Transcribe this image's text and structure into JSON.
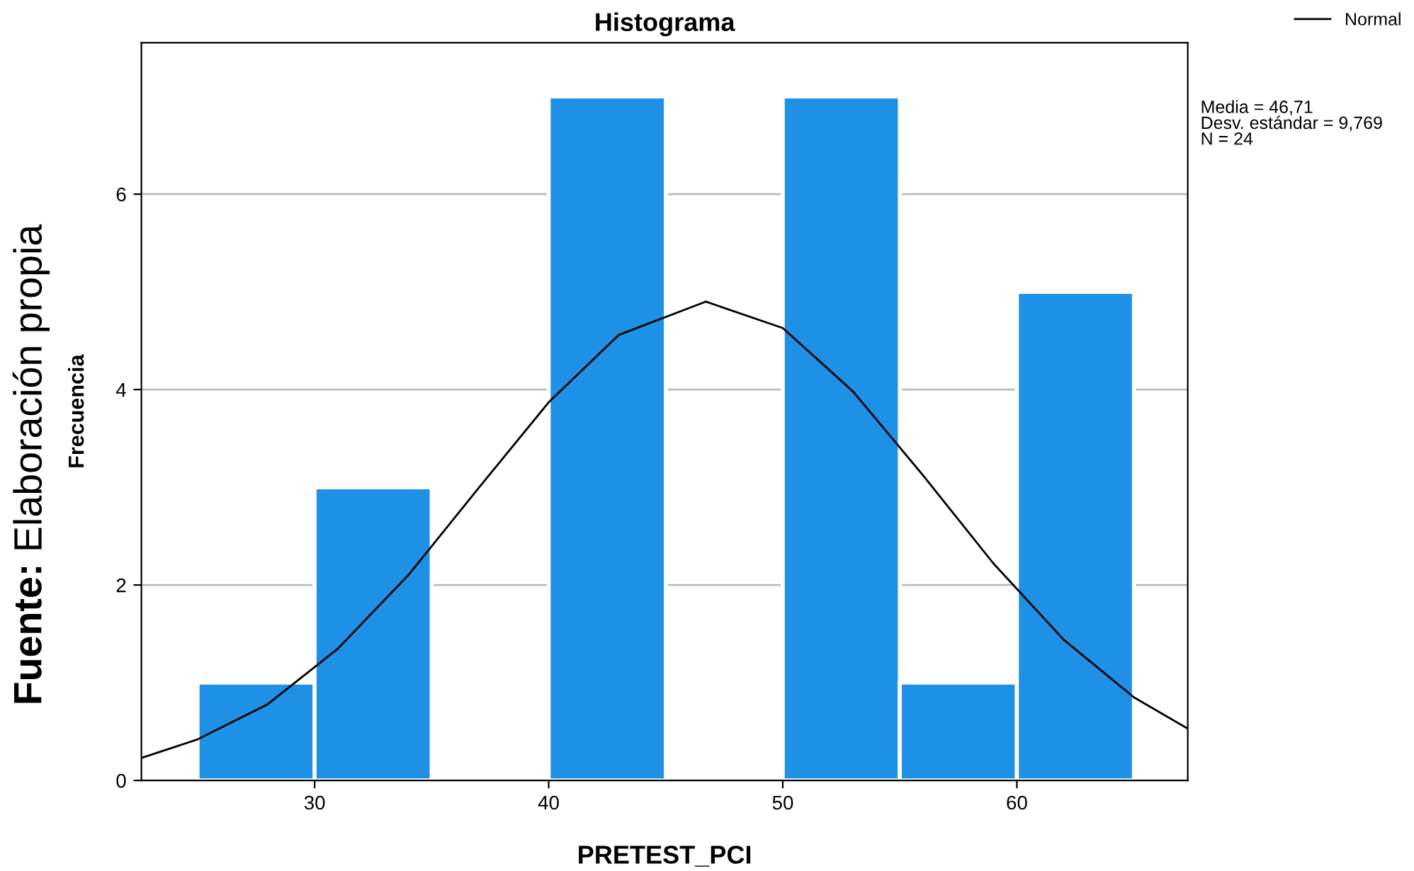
{
  "chart_data": {
    "type": "histogram",
    "title": "Histograma",
    "xlabel": "PRETEST_PCI",
    "ylabel": "Frecuencia",
    "bins": [
      25,
      30,
      35,
      40,
      45,
      50,
      55,
      60,
      65
    ],
    "values": [
      1,
      3,
      0,
      7,
      0,
      7,
      1,
      5
    ],
    "color": "#1e90e6",
    "series": [
      {
        "type": "line",
        "name": "Normal",
        "color": "#000000",
        "x": [
          22.6,
          25,
          28,
          31,
          34,
          37,
          40,
          43,
          46.71,
          50,
          53,
          56,
          59,
          62,
          65,
          67.3
        ],
        "values": [
          0.23,
          0.42,
          0.78,
          1.35,
          2.1,
          2.99,
          3.87,
          4.56,
          4.9,
          4.63,
          3.98,
          3.12,
          2.22,
          1.44,
          0.85,
          0.53
        ]
      }
    ],
    "xlim": [
      22.6,
      67.3
    ],
    "ylim": [
      0,
      7.55
    ],
    "xticks": [
      30,
      40,
      50,
      60
    ],
    "yticks": [
      0,
      2,
      4,
      6
    ],
    "grid": "y",
    "legend": "top right",
    "annotations": [
      "Media = 46,71\nDesv. estándar = 9,769\nN = 24",
      "Fuente: Elaboración propia"
    ]
  }
}
